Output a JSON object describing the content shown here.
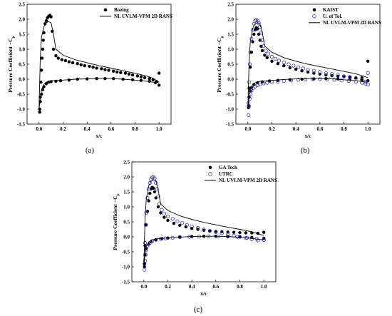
{
  "panels": [
    {
      "caption": "(a)",
      "chart_data": {
        "type": "scatter",
        "xlabel": "x/c",
        "ylabel": "Pressure Coefficient −C",
        "ylabel_sub": "p",
        "xlim": [
          -0.1,
          1.1
        ],
        "ylim": [
          -1.5,
          2.5
        ],
        "xticks": [
          "0.0",
          "0.2",
          "0.4",
          "0.6",
          "0.8",
          "1.0"
        ],
        "yticks": [
          "-1.5",
          "-1.0",
          "-0.5",
          "0.0",
          "0.5",
          "1.0",
          "1.5",
          "2.0",
          "2.5"
        ],
        "legend_position": "top-right",
        "series": [
          {
            "name": "Boeing",
            "kind": "marker-filled",
            "color": "#000000",
            "x": [
              0.005,
              0.01,
              0.015,
              0.02,
              0.025,
              0.03,
              0.035,
              0.04,
              0.05,
              0.06,
              0.07,
              0.08,
              0.09,
              0.1,
              0.11,
              0.12,
              0.14,
              0.16,
              0.19,
              0.22,
              0.25,
              0.28,
              0.32,
              0.35,
              0.38,
              0.42,
              0.45,
              0.48,
              0.52,
              0.55,
              0.58,
              0.62,
              0.65,
              0.68,
              0.72,
              0.75,
              0.78,
              0.82,
              0.85,
              0.88,
              0.92,
              0.95,
              0.98,
              1.0,
              0.005,
              0.01,
              0.02,
              0.03,
              0.04,
              0.06,
              0.08,
              0.1,
              0.14,
              0.18,
              0.25,
              0.32,
              0.4,
              0.48,
              0.55,
              0.62,
              0.7,
              0.78,
              0.85,
              0.92,
              0.97,
              1.0
            ],
            "y": [
              -1.0,
              -0.6,
              -0.1,
              0.3,
              0.7,
              1.0,
              1.3,
              1.55,
              1.85,
              1.95,
              2.05,
              2.1,
              2.13,
              2.08,
              1.6,
              1.0,
              0.78,
              0.7,
              0.65,
              0.62,
              0.58,
              0.55,
              0.52,
              0.48,
              0.45,
              0.43,
              0.4,
              0.37,
              0.35,
              0.32,
              0.3,
              0.27,
              0.24,
              0.22,
              0.2,
              0.17,
              0.14,
              0.11,
              0.08,
              0.05,
              0.02,
              -0.02,
              -0.08,
              0.2,
              -1.1,
              -0.75,
              -0.5,
              -0.35,
              -0.25,
              -0.15,
              -0.1,
              -0.08,
              -0.07,
              -0.05,
              -0.03,
              0.0,
              0.01,
              0.02,
              0.02,
              0.02,
              0.0,
              -0.02,
              -0.04,
              -0.07,
              -0.12,
              -0.2
            ]
          },
          {
            "name": "NL UVLM-VPM 2D RANS",
            "kind": "line",
            "color": "#000000",
            "upper_x": [
              0.0,
              0.01,
              0.02,
              0.04,
              0.06,
              0.08,
              0.1,
              0.12,
              0.14,
              0.2,
              0.3,
              0.4,
              0.5,
              0.6,
              0.7,
              0.8,
              0.9,
              0.95,
              1.0
            ],
            "upper_y": [
              -1.0,
              0.7,
              1.4,
              1.75,
              1.88,
              1.92,
              1.88,
              1.5,
              1.0,
              0.8,
              0.65,
              0.55,
              0.45,
              0.37,
              0.28,
              0.2,
              0.1,
              0.03,
              -0.1
            ],
            "lower_x": [
              0.0,
              0.01,
              0.02,
              0.04,
              0.06,
              0.1,
              0.2,
              0.3,
              0.4,
              0.5,
              0.6,
              0.7,
              0.8,
              0.9,
              0.95,
              1.0
            ],
            "lower_y": [
              -1.0,
              -0.65,
              -0.35,
              -0.18,
              -0.1,
              -0.05,
              -0.03,
              0.0,
              0.01,
              0.02,
              0.02,
              0.0,
              -0.03,
              -0.07,
              -0.1,
              -0.1
            ]
          }
        ]
      }
    },
    {
      "caption": "(b)",
      "chart_data": {
        "type": "scatter",
        "xlabel": "x/c",
        "ylabel": "Pressure Coefficient −C",
        "ylabel_sub": "p",
        "xlim": [
          -0.1,
          1.1
        ],
        "ylim": [
          -1.5,
          2.5
        ],
        "xticks": [
          "0.0",
          "0.2",
          "0.4",
          "0.6",
          "0.8",
          "1.0"
        ],
        "yticks": [
          "-1.5",
          "-1.0",
          "-0.5",
          "0.0",
          "0.5",
          "1.0",
          "1.5",
          "2.0",
          "2.5"
        ],
        "legend_position": "top-right",
        "series": [
          {
            "name": "KAIST",
            "kind": "marker-filled",
            "color": "#000000",
            "x": [
              0.005,
              0.01,
              0.02,
              0.03,
              0.04,
              0.05,
              0.06,
              0.07,
              0.08,
              0.09,
              0.1,
              0.11,
              0.12,
              0.14,
              0.16,
              0.2,
              0.25,
              0.3,
              0.35,
              0.4,
              0.45,
              0.5,
              0.55,
              0.6,
              0.65,
              0.7,
              0.75,
              0.8,
              0.85,
              0.9,
              0.95,
              1.0,
              0.005,
              0.01,
              0.02,
              0.03,
              0.05,
              0.08,
              0.12,
              0.18,
              0.25,
              0.35,
              0.45,
              0.55,
              0.65,
              0.75,
              0.85,
              0.95,
              1.0
            ],
            "y": [
              -0.9,
              -0.3,
              0.4,
              0.9,
              1.25,
              1.5,
              1.65,
              1.72,
              1.68,
              1.5,
              1.3,
              1.1,
              0.95,
              0.8,
              0.72,
              0.6,
              0.52,
              0.45,
              0.38,
              0.33,
              0.28,
              0.24,
              0.2,
              0.17,
              0.14,
              0.12,
              0.1,
              0.08,
              0.06,
              0.05,
              0.05,
              0.6,
              -0.95,
              -0.6,
              -0.4,
              -0.28,
              -0.18,
              -0.12,
              -0.09,
              -0.06,
              -0.04,
              -0.02,
              0.0,
              0.01,
              0.02,
              0.01,
              0.0,
              -0.02,
              -0.05
            ]
          },
          {
            "name": "U. of Tol.",
            "kind": "marker-open",
            "color": "#3333cc",
            "x": [
              0.005,
              0.01,
              0.015,
              0.02,
              0.03,
              0.04,
              0.05,
              0.06,
              0.07,
              0.08,
              0.09,
              0.1,
              0.11,
              0.12,
              0.13,
              0.15,
              0.17,
              0.2,
              0.23,
              0.26,
              0.3,
              0.34,
              0.38,
              0.42,
              0.46,
              0.5,
              0.55,
              0.6,
              0.65,
              0.7,
              0.75,
              0.8,
              0.85,
              0.9,
              0.95,
              0.98,
              1.0,
              0.005,
              0.01,
              0.015,
              0.02,
              0.03,
              0.04,
              0.06,
              0.08,
              0.1,
              0.13,
              0.16,
              0.2,
              0.25,
              0.3,
              0.36,
              0.42,
              0.48,
              0.54,
              0.6,
              0.66,
              0.72,
              0.78,
              0.84,
              0.9,
              0.95,
              0.98,
              1.0
            ],
            "y": [
              -0.8,
              -0.1,
              0.5,
              0.9,
              1.35,
              1.65,
              1.85,
              1.95,
              1.98,
              1.95,
              1.88,
              1.75,
              1.55,
              1.3,
              1.1,
              0.95,
              0.85,
              0.75,
              0.68,
              0.62,
              0.56,
              0.5,
              0.45,
              0.4,
              0.36,
              0.32,
              0.28,
              0.24,
              0.2,
              0.17,
              0.14,
              0.1,
              0.07,
              0.03,
              -0.02,
              -0.08,
              0.2,
              -1.2,
              -0.9,
              -0.65,
              -0.5,
              -0.38,
              -0.3,
              -0.24,
              -0.2,
              -0.17,
              -0.14,
              -0.12,
              -0.1,
              -0.08,
              -0.06,
              -0.04,
              -0.02,
              -0.01,
              0.0,
              0.0,
              -0.01,
              -0.02,
              -0.04,
              -0.06,
              -0.09,
              -0.12,
              -0.15,
              -0.18
            ]
          },
          {
            "name": "NL UVLM-VPM 2D RANS",
            "kind": "line",
            "color": "#000000",
            "upper_x": [
              0.0,
              0.01,
              0.02,
              0.04,
              0.06,
              0.08,
              0.1,
              0.12,
              0.14,
              0.2,
              0.3,
              0.4,
              0.5,
              0.6,
              0.7,
              0.8,
              0.9,
              0.95,
              1.0
            ],
            "upper_y": [
              -1.0,
              0.6,
              1.25,
              1.7,
              1.85,
              1.88,
              1.85,
              1.55,
              1.1,
              0.9,
              0.72,
              0.6,
              0.5,
              0.42,
              0.34,
              0.26,
              0.18,
              0.12,
              0.05
            ],
            "lower_x": [
              0.0,
              0.01,
              0.02,
              0.04,
              0.06,
              0.1,
              0.2,
              0.3,
              0.4,
              0.5,
              0.6,
              0.7,
              0.8,
              0.9,
              0.95,
              1.0
            ],
            "lower_y": [
              -1.0,
              -0.55,
              -0.32,
              -0.18,
              -0.12,
              -0.07,
              -0.04,
              -0.01,
              0.01,
              0.02,
              0.02,
              0.01,
              -0.02,
              -0.05,
              -0.08,
              -0.1
            ]
          }
        ]
      }
    },
    {
      "caption": "(c)",
      "chart_data": {
        "type": "scatter",
        "xlabel": "x/c",
        "ylabel": "Pressure Coefficient −C",
        "ylabel_sub": "p",
        "xlim": [
          -0.1,
          1.1
        ],
        "ylim": [
          -1.5,
          2.5
        ],
        "xticks": [
          "0.0",
          "0.2",
          "0.4",
          "0.6",
          "0.8",
          "1.0"
        ],
        "yticks": [
          "-1.5",
          "-1.0",
          "-0.5",
          "0.0",
          "0.5",
          "1.0",
          "1.5",
          "2.0",
          "2.5"
        ],
        "legend_position": "top-right",
        "series": [
          {
            "name": "GA Tech",
            "kind": "marker-filled",
            "color": "#000000",
            "x": [
              0.005,
              0.01,
              0.02,
              0.03,
              0.04,
              0.05,
              0.06,
              0.07,
              0.08,
              0.09,
              0.1,
              0.12,
              0.14,
              0.17,
              0.2,
              0.25,
              0.3,
              0.35,
              0.4,
              0.45,
              0.5,
              0.55,
              0.6,
              0.65,
              0.7,
              0.75,
              0.8,
              0.85,
              0.9,
              0.95,
              1.0,
              0.005,
              0.01,
              0.02,
              0.04,
              0.06,
              0.1,
              0.15,
              0.2,
              0.3,
              0.4,
              0.5,
              0.6,
              0.7,
              0.8,
              0.9,
              1.0
            ],
            "y": [
              -0.9,
              -0.3,
              0.4,
              0.85,
              1.2,
              1.45,
              1.6,
              1.65,
              1.62,
              1.5,
              1.3,
              1.0,
              0.8,
              0.65,
              0.55,
              0.45,
              0.38,
              0.33,
              0.28,
              0.25,
              0.22,
              0.2,
              0.18,
              0.17,
              0.16,
              0.15,
              0.14,
              0.13,
              0.13,
              0.12,
              0.15,
              -1.0,
              -0.6,
              -0.4,
              -0.25,
              -0.17,
              -0.1,
              -0.06,
              -0.04,
              -0.01,
              0.01,
              0.02,
              0.02,
              0.01,
              0.0,
              -0.02,
              -0.05
            ]
          },
          {
            "name": "UTRC",
            "kind": "marker-open",
            "color": "#3333cc",
            "x": [
              0.005,
              0.01,
              0.015,
              0.02,
              0.03,
              0.04,
              0.05,
              0.06,
              0.07,
              0.08,
              0.09,
              0.1,
              0.11,
              0.12,
              0.13,
              0.15,
              0.17,
              0.2,
              0.24,
              0.28,
              0.32,
              0.36,
              0.4,
              0.45,
              0.5,
              0.55,
              0.6,
              0.65,
              0.7,
              0.75,
              0.8,
              0.85,
              0.9,
              0.95,
              1.0,
              0.005,
              0.01,
              0.015,
              0.02,
              0.03,
              0.05,
              0.07,
              0.1,
              0.14,
              0.18,
              0.24,
              0.3,
              0.38,
              0.46,
              0.54,
              0.62,
              0.7,
              0.78,
              0.86,
              0.94,
              1.0
            ],
            "y": [
              -0.9,
              -0.2,
              0.4,
              0.8,
              1.3,
              1.6,
              1.8,
              1.92,
              1.98,
              2.0,
              1.95,
              1.8,
              1.6,
              1.35,
              1.1,
              0.9,
              0.78,
              0.68,
              0.6,
              0.52,
              0.46,
              0.4,
              0.35,
              0.3,
              0.25,
              0.2,
              0.16,
              0.12,
              0.08,
              0.04,
              0.0,
              -0.04,
              -0.08,
              -0.12,
              -0.1,
              -1.1,
              -0.8,
              -0.6,
              -0.45,
              -0.3,
              -0.2,
              -0.14,
              -0.1,
              -0.07,
              -0.05,
              -0.03,
              -0.01,
              0.0,
              0.01,
              0.02,
              0.02,
              0.01,
              0.0,
              -0.03,
              -0.07,
              -0.1
            ]
          },
          {
            "name": "NL UVLM-VPM 2D RANS",
            "kind": "line",
            "color": "#000000",
            "upper_x": [
              0.0,
              0.01,
              0.02,
              0.04,
              0.06,
              0.08,
              0.1,
              0.12,
              0.14,
              0.2,
              0.3,
              0.4,
              0.5,
              0.6,
              0.7,
              0.8,
              0.9,
              0.95,
              1.0
            ],
            "upper_y": [
              -1.0,
              0.6,
              1.25,
              1.7,
              1.85,
              1.9,
              1.88,
              1.55,
              1.1,
              0.88,
              0.7,
              0.58,
              0.48,
              0.4,
              0.32,
              0.25,
              0.17,
              0.1,
              0.05
            ],
            "lower_x": [
              0.0,
              0.01,
              0.02,
              0.04,
              0.06,
              0.1,
              0.2,
              0.3,
              0.4,
              0.5,
              0.6,
              0.7,
              0.8,
              0.9,
              0.95,
              1.0
            ],
            "lower_y": [
              -1.0,
              -0.55,
              -0.32,
              -0.18,
              -0.12,
              -0.07,
              -0.04,
              -0.01,
              0.01,
              0.02,
              0.02,
              0.01,
              -0.02,
              -0.05,
              -0.08,
              -0.1
            ]
          }
        ]
      }
    }
  ]
}
